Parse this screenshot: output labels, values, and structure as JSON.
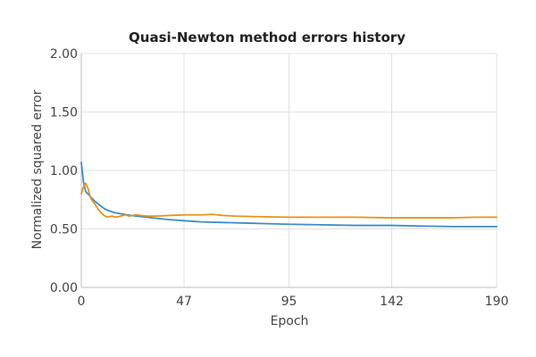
{
  "chart_data": {
    "type": "line",
    "title": "Quasi-Newton method errors history",
    "xlabel": "Epoch",
    "ylabel": "Normalized squared error",
    "xlim": [
      0,
      190
    ],
    "ylim": [
      0,
      2
    ],
    "x_ticks": [
      "0",
      "47",
      "95",
      "142",
      "190"
    ],
    "y_ticks": [
      "0.00",
      "0.50",
      "1.00",
      "1.50",
      "2.00"
    ],
    "grid": true,
    "legend": "none",
    "series": [
      {
        "color": "#3a8fc7",
        "x": [
          0,
          1,
          2,
          3,
          4,
          6,
          8,
          10,
          12,
          15,
          18,
          21,
          25,
          30,
          35,
          40,
          47,
          55,
          65,
          75,
          85,
          95,
          110,
          125,
          142,
          155,
          170,
          180,
          190
        ],
        "y": [
          1.07,
          0.9,
          0.82,
          0.8,
          0.78,
          0.74,
          0.71,
          0.68,
          0.66,
          0.64,
          0.63,
          0.62,
          0.61,
          0.6,
          0.59,
          0.58,
          0.57,
          0.56,
          0.555,
          0.55,
          0.545,
          0.54,
          0.535,
          0.53,
          0.53,
          0.525,
          0.52,
          0.52,
          0.52
        ]
      },
      {
        "color": "#e8931a",
        "x": [
          0,
          1,
          2,
          3,
          4,
          5,
          6,
          7,
          8,
          10,
          12,
          14,
          16,
          18,
          20,
          22,
          25,
          30,
          35,
          40,
          47,
          55,
          60,
          65,
          70,
          80,
          95,
          110,
          125,
          142,
          155,
          170,
          180,
          190
        ],
        "y": [
          0.8,
          0.86,
          0.89,
          0.85,
          0.78,
          0.74,
          0.72,
          0.69,
          0.66,
          0.62,
          0.6,
          0.61,
          0.6,
          0.61,
          0.62,
          0.61,
          0.62,
          0.61,
          0.61,
          0.615,
          0.62,
          0.62,
          0.625,
          0.615,
          0.61,
          0.605,
          0.6,
          0.6,
          0.6,
          0.595,
          0.595,
          0.595,
          0.6,
          0.6
        ]
      }
    ]
  }
}
